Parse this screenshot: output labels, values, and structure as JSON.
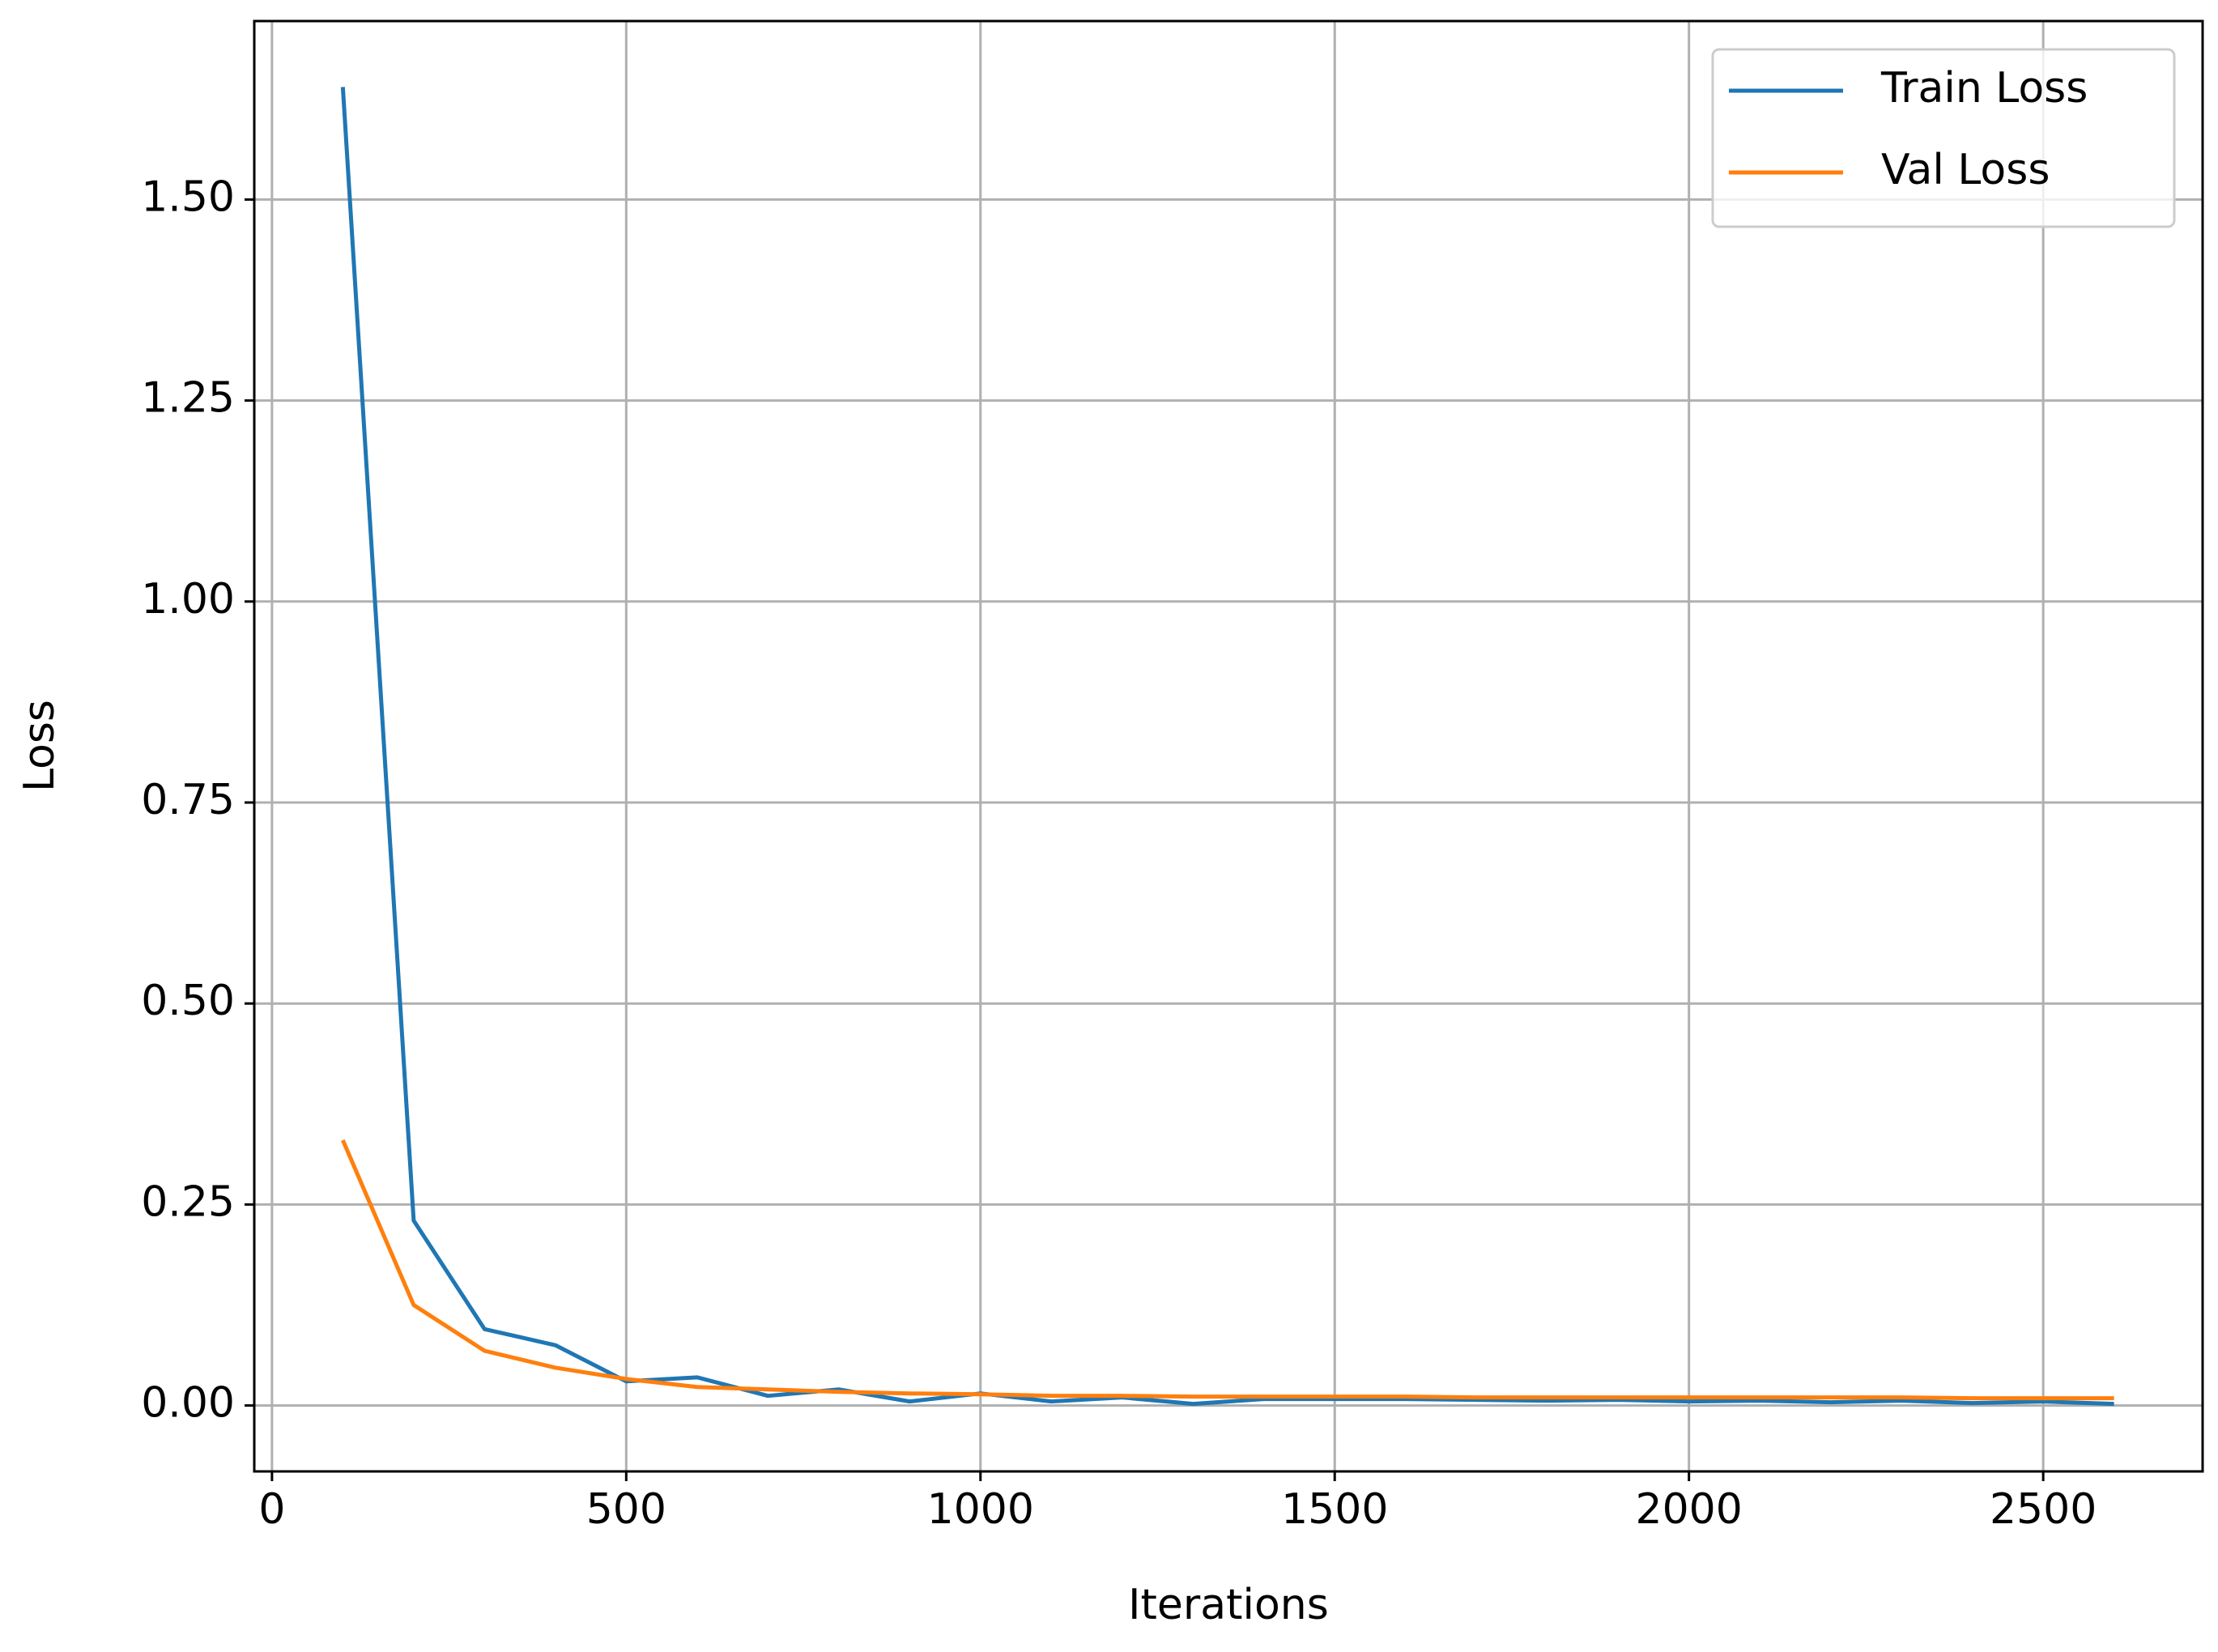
{
  "chart_data": {
    "type": "line",
    "x_label": "Iterations",
    "y_label": "Loss",
    "x": [
      100,
      200,
      300,
      400,
      500,
      600,
      700,
      800,
      900,
      1000,
      1100,
      1200,
      1300,
      1400,
      1500,
      1600,
      1700,
      1800,
      1900,
      2000,
      2100,
      2200,
      2300,
      2400,
      2500,
      2600
    ],
    "series": [
      {
        "name": "Train Loss",
        "color": "#1f77b4",
        "values": [
          1.64,
          0.23,
          0.095,
          0.075,
          0.03,
          0.035,
          0.012,
          0.02,
          0.005,
          0.015,
          0.005,
          0.01,
          0.002,
          0.008,
          0.008,
          0.008,
          0.007,
          0.006,
          0.007,
          0.005,
          0.006,
          0.004,
          0.006,
          0.003,
          0.005,
          0.002
        ]
      },
      {
        "name": "Val Loss",
        "color": "#ff7f0e",
        "values": [
          0.33,
          0.125,
          0.068,
          0.047,
          0.033,
          0.023,
          0.02,
          0.017,
          0.015,
          0.014,
          0.012,
          0.012,
          0.011,
          0.011,
          0.011,
          0.011,
          0.01,
          0.01,
          0.01,
          0.01,
          0.01,
          0.01,
          0.01,
          0.009,
          0.009,
          0.009
        ]
      }
    ],
    "xlim": [
      -25,
      2725
    ],
    "ylim": [
      -0.082,
      1.722
    ],
    "xticks": [
      0,
      500,
      1000,
      1500,
      2000,
      2500
    ],
    "yticks": [
      {
        "value": 0,
        "label": "0.00"
      },
      {
        "value": 0.25,
        "label": "0.25"
      },
      {
        "value": 0.5,
        "label": "0.50"
      },
      {
        "value": 0.75,
        "label": "0.75"
      },
      {
        "value": 1,
        "label": "1.00"
      },
      {
        "value": 1.25,
        "label": "1.25"
      },
      {
        "value": 1.5,
        "label": "1.50"
      }
    ],
    "grid": true,
    "legend": "upper right"
  }
}
